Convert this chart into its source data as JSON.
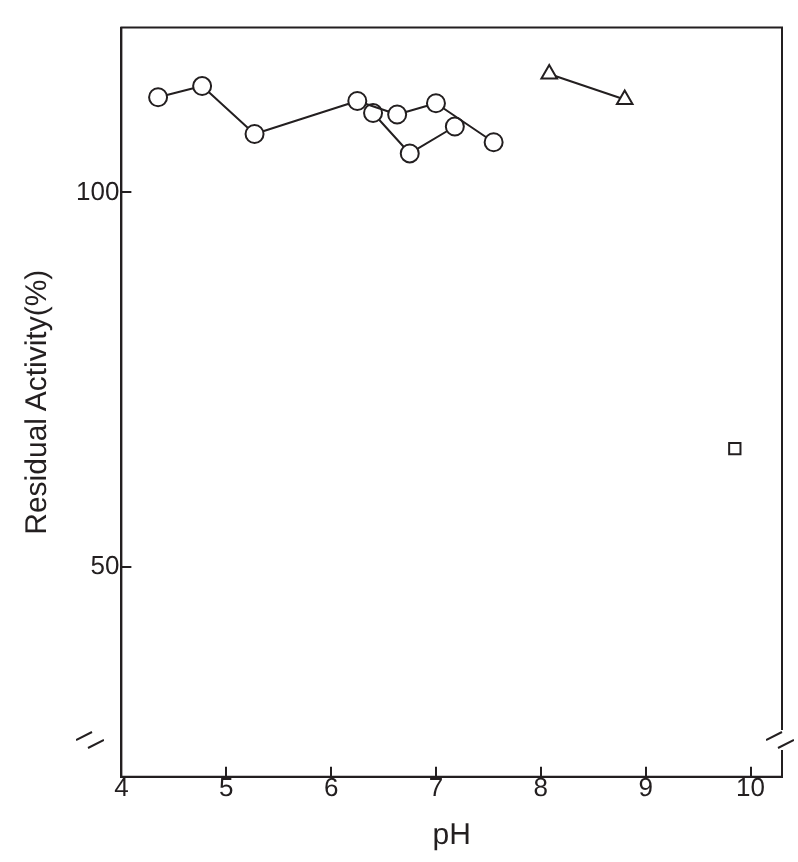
{
  "chart_data": {
    "type": "line",
    "xlabel": "pH",
    "ylabel": "Residual Activity(%)",
    "xlim": [
      4,
      10.3
    ],
    "xticks": [
      4,
      5,
      6,
      7,
      8,
      9,
      10
    ],
    "ylim": [
      22,
      122
    ],
    "yticks": [
      50,
      100
    ],
    "grid": false,
    "legend": false,
    "line_style": "solid",
    "series": [
      {
        "color": "#231f20",
        "marker": "circle",
        "x": [
          4.35,
          4.77,
          5.27,
          6.25,
          6.63,
          7.0,
          7.55
        ],
        "values": [
          112.7,
          114.2,
          107.8,
          112.2,
          110.4,
          111.9,
          106.7
        ]
      },
      {
        "color": "#231f20",
        "marker": "circle",
        "x": [
          6.4,
          6.75,
          7.18
        ],
        "values": [
          110.6,
          105.2,
          108.8
        ]
      },
      {
        "color": "#231f20",
        "marker": "triangle",
        "x": [
          8.08,
          8.8
        ],
        "values": [
          115.8,
          112.4
        ]
      },
      {
        "color": "#231f20",
        "marker": "square",
        "x": [
          9.85
        ],
        "values": [
          65.8
        ]
      }
    ]
  }
}
